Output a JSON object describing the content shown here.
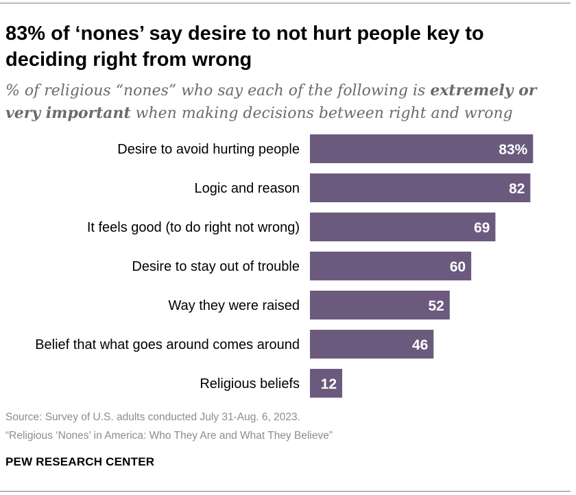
{
  "title": "83% of ‘nones’ say desire to not hurt people key to deciding right from wrong",
  "subtitle": {
    "part1": "% of religious “nones” who say each of the following is ",
    "emphasis": "extremely or very important",
    "part2": " when making decisions between right and wrong"
  },
  "chart_data": {
    "type": "bar",
    "orientation": "horizontal",
    "categories": [
      "Desire to avoid hurting people",
      "Logic and reason",
      "It feels good (to do right not wrong)",
      "Desire to stay out of trouble",
      "Way they were raised",
      "Belief that what goes around comes around",
      "Religious beliefs"
    ],
    "values": [
      83,
      82,
      69,
      60,
      52,
      46,
      12
    ],
    "value_labels": [
      "83%",
      "82",
      "69",
      "60",
      "52",
      "46",
      "12"
    ],
    "xlim": [
      0,
      100
    ],
    "bar_color": "#6b5a7e",
    "label_color": "#ffffff"
  },
  "source": {
    "line1": "Source: Survey of U.S. adults conducted July 31-Aug. 6, 2023.",
    "line2": "“Religious ‘Nones’ in America: Who They Are and What They Believe”"
  },
  "brand": "PEW RESEARCH CENTER"
}
